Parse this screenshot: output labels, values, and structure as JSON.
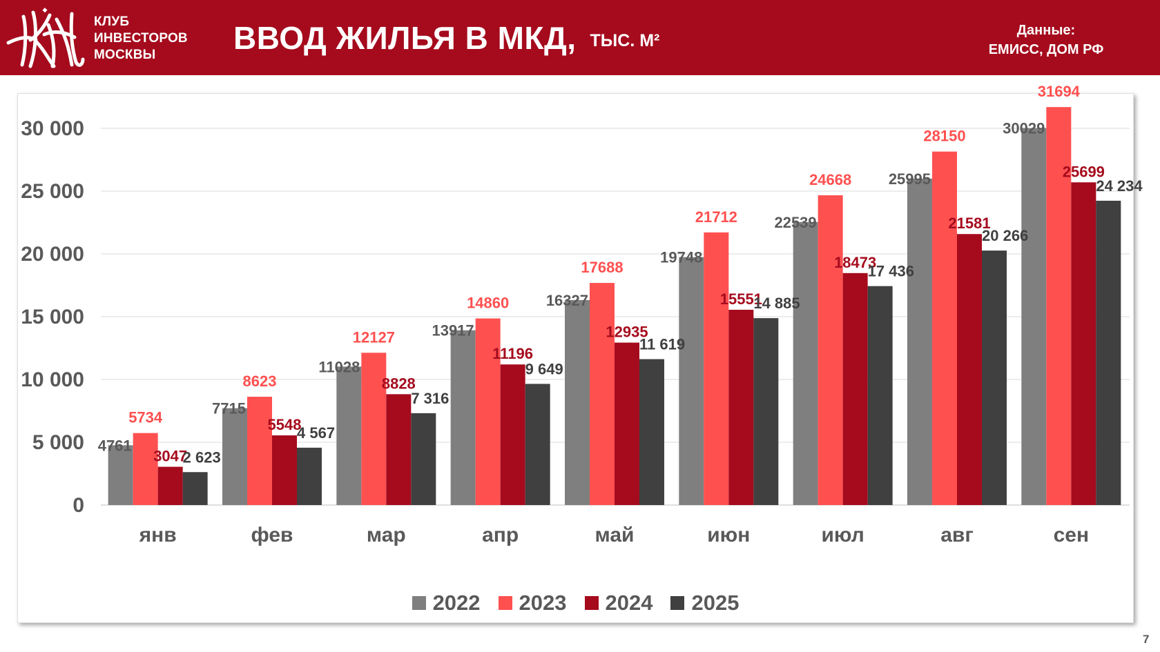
{
  "header": {
    "club_name": [
      "КЛУБ",
      "ИНВЕСТОРОВ",
      "МОСКВЫ"
    ],
    "title": "ВВОД ЖИЛЬЯ В МКД,",
    "title_unit": "ТЫС. М²",
    "source_label": "Данные:",
    "source_value": "ЕМИСС, ДОМ РФ",
    "logo_icon": "kim-monogram-logo",
    "colors": {
      "header_bg": "#a50b1d",
      "header_text": "#ffffff"
    }
  },
  "page_number": "7",
  "chart_data": {
    "type": "bar",
    "title": "ВВОД ЖИЛЬЯ В МКД, ТЫС. М²",
    "xlabel": "",
    "ylabel": "",
    "ylim": [
      0,
      32000
    ],
    "yticks": [
      0,
      5000,
      10000,
      15000,
      20000,
      25000,
      30000
    ],
    "ytick_labels": [
      "0",
      "5 000",
      "10 000",
      "15 000",
      "20 000",
      "25 000",
      "30 000"
    ],
    "grid": true,
    "legend_position": "bottom",
    "categories": [
      "янв",
      "фев",
      "мар",
      "апр",
      "май",
      "июн",
      "июл",
      "авг",
      "сен"
    ],
    "series": [
      {
        "name": "2022",
        "color": "#7f7f7f",
        "label_color": "#595959",
        "values": [
          4761,
          7715,
          11028,
          13917,
          16327,
          19748,
          22539,
          25995,
          30029
        ],
        "labels": [
          "4761",
          "7715",
          "11028",
          "13917",
          "16327",
          "19748",
          "22539",
          "25995",
          "30029"
        ]
      },
      {
        "name": "2023",
        "color": "#ff5050",
        "label_color": "#ff5050",
        "values": [
          5734,
          8623,
          12127,
          14860,
          17688,
          21712,
          24668,
          28150,
          31694
        ],
        "labels": [
          "5734",
          "8623",
          "12127",
          "14860",
          "17688",
          "21712",
          "24668",
          "28150",
          "31694"
        ]
      },
      {
        "name": "2024",
        "color": "#a50b1d",
        "label_color": "#a50b1d",
        "values": [
          3047,
          5548,
          8828,
          11196,
          12935,
          15551,
          18473,
          21581,
          25699
        ],
        "labels": [
          "3047",
          "5548",
          "8828",
          "11196",
          "12935",
          "15551",
          "18473",
          "21581",
          "25699"
        ]
      },
      {
        "name": "2025",
        "color": "#404040",
        "label_color": "#404040",
        "values": [
          2623,
          4567,
          7316,
          9649,
          11619,
          14885,
          17436,
          20266,
          24234
        ],
        "labels": [
          "2 623",
          "4 567",
          "7 316",
          "9 649",
          "11 619",
          "14 885",
          "17 436",
          "20 266",
          "24 234"
        ]
      }
    ]
  }
}
